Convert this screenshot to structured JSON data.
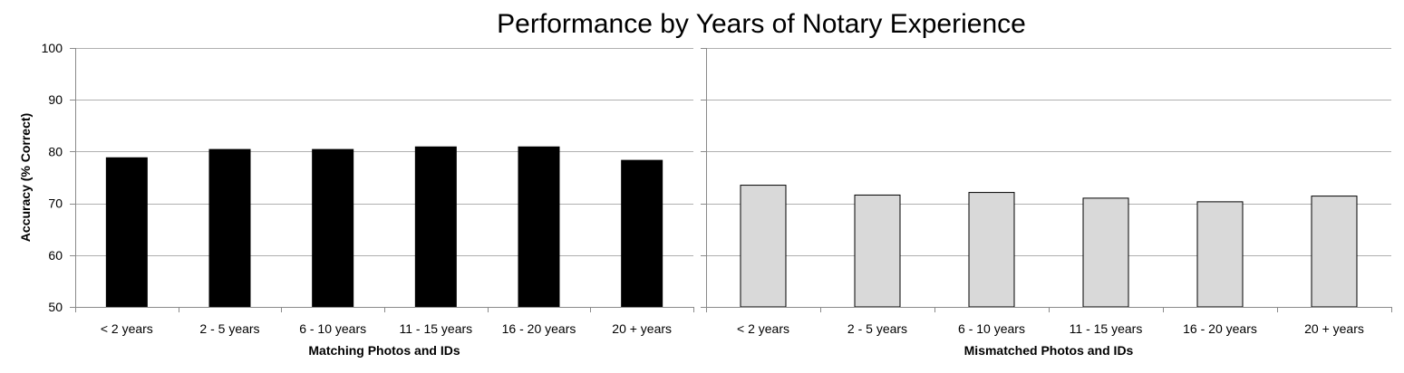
{
  "title": "Performance by Years of Notary Experience",
  "ylabel": "Accuracy (% Correct)",
  "chart_data": [
    {
      "type": "bar",
      "title": "Performance by Years of Notary Experience",
      "xlabel": "Matching Photos and IDs",
      "ylabel": "Accuracy (% Correct)",
      "ylim": [
        50,
        100
      ],
      "yticks": [
        50,
        60,
        70,
        80,
        90,
        100
      ],
      "grid": true,
      "categories": [
        "< 2 years",
        "2 - 5 years",
        "6 - 10 years",
        "11 - 15 years",
        "16 - 20 years",
        "20 + years"
      ],
      "values": [
        78.8,
        80.4,
        80.4,
        80.9,
        80.9,
        78.3
      ],
      "color": "#000000"
    },
    {
      "type": "bar",
      "xlabel": "Mismatched Photos and IDs",
      "ylim": [
        50,
        100
      ],
      "grid": true,
      "categories": [
        "< 2 years",
        "2 - 5 years",
        "6 - 10 years",
        "11 - 15 years",
        "16 - 20 years",
        "20 + years"
      ],
      "values": [
        73.5,
        71.6,
        72.1,
        71.0,
        70.3,
        71.4
      ],
      "color": "#d9d9d9"
    }
  ]
}
